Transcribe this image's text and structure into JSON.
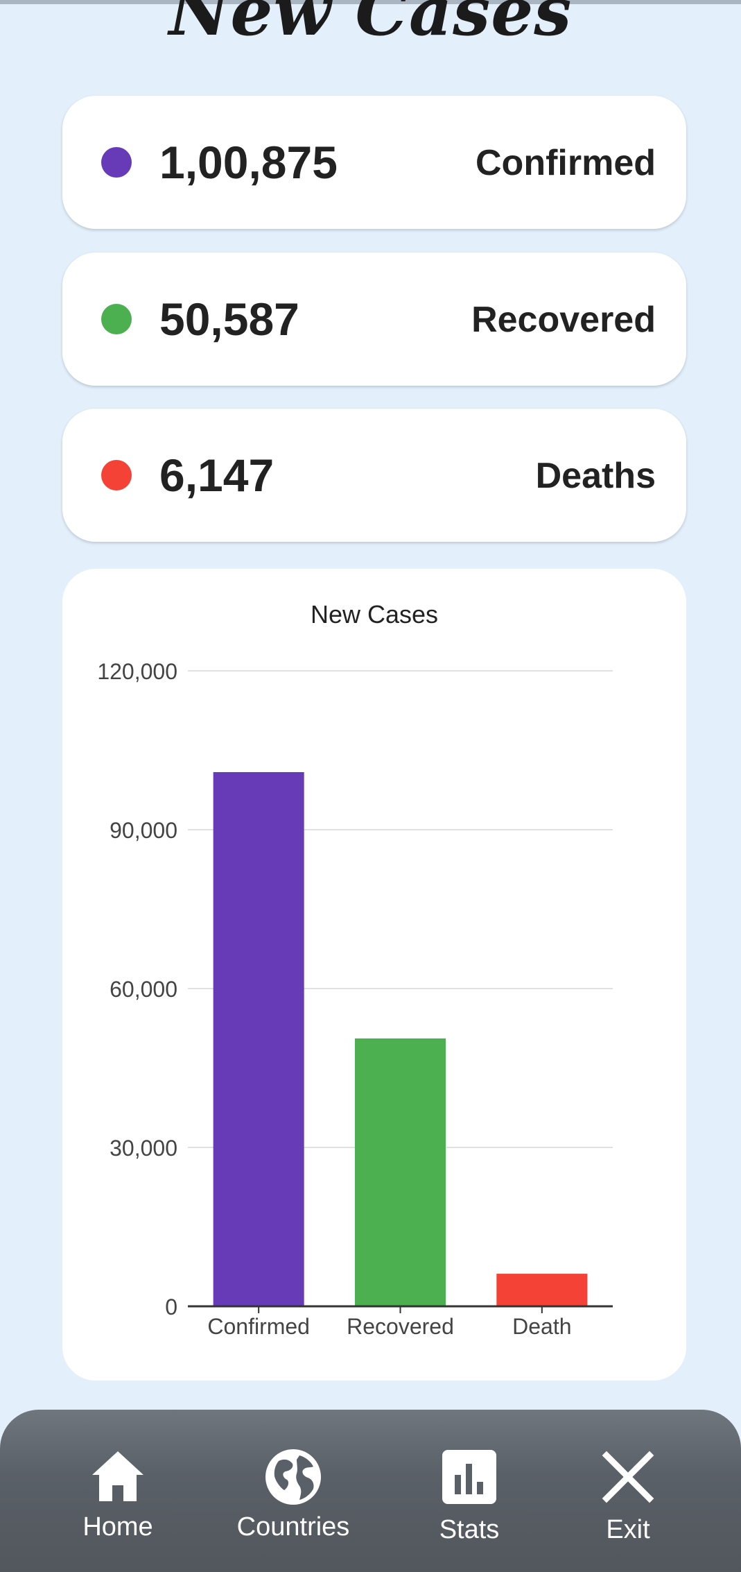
{
  "page": {
    "title": "New Cases"
  },
  "stats": [
    {
      "value": "1,00,875",
      "label": "Confirmed",
      "color": "#673ab7"
    },
    {
      "value": "50,587",
      "label": "Recovered",
      "color": "#4caf50"
    },
    {
      "value": "6,147",
      "label": "Deaths",
      "color": "#f44336"
    }
  ],
  "chart_data": {
    "type": "bar",
    "title": "New Cases",
    "categories": [
      "Confirmed",
      "Recovered",
      "Death"
    ],
    "values": [
      100875,
      50587,
      6147
    ],
    "colors": [
      "#673ab7",
      "#4caf50",
      "#f44336"
    ],
    "ylim": [
      0,
      120000
    ],
    "yticks": [
      0,
      30000,
      60000,
      90000,
      120000
    ],
    "ytick_labels": [
      "0",
      "30,000",
      "60,000",
      "90,000",
      "120,000"
    ],
    "xlabel": "",
    "ylabel": "",
    "grid": true,
    "legend": "none"
  },
  "nav": {
    "items": [
      {
        "label": "Home",
        "icon": "home-icon"
      },
      {
        "label": "Countries",
        "icon": "globe-icon"
      },
      {
        "label": "Stats",
        "icon": "bar-chart-icon"
      },
      {
        "label": "Exit",
        "icon": "close-icon"
      }
    ]
  }
}
